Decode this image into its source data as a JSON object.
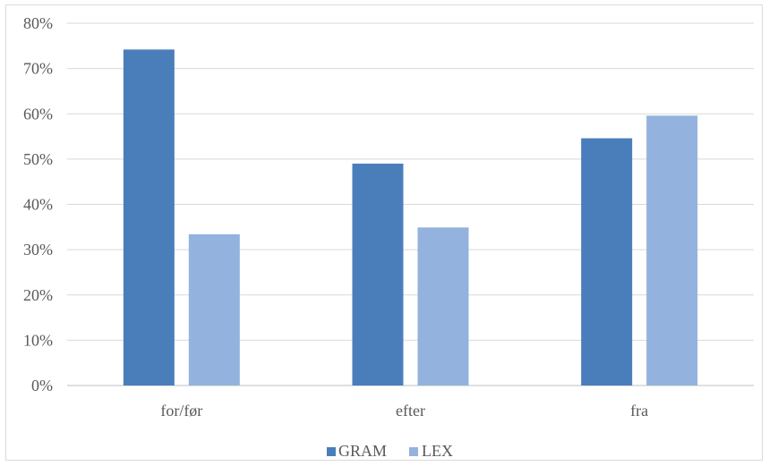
{
  "chart_data": {
    "type": "bar",
    "categories": [
      "for/før",
      "efter",
      "fra"
    ],
    "series": [
      {
        "name": "GRAM",
        "values": [
          74.2,
          49.0,
          54.6
        ],
        "color": "#4a7ebb"
      },
      {
        "name": "LEX",
        "values": [
          33.4,
          34.9,
          59.6
        ],
        "color": "#93b3de"
      }
    ],
    "ylim": [
      0,
      80
    ],
    "yticks": [
      "0%",
      "10%",
      "20%",
      "30%",
      "40%",
      "50%",
      "60%",
      "70%",
      "80%"
    ],
    "grid": true,
    "legend_position": "bottom-center",
    "grid_color": "#d9d9d9",
    "axis_color": "#bfbfbf"
  }
}
